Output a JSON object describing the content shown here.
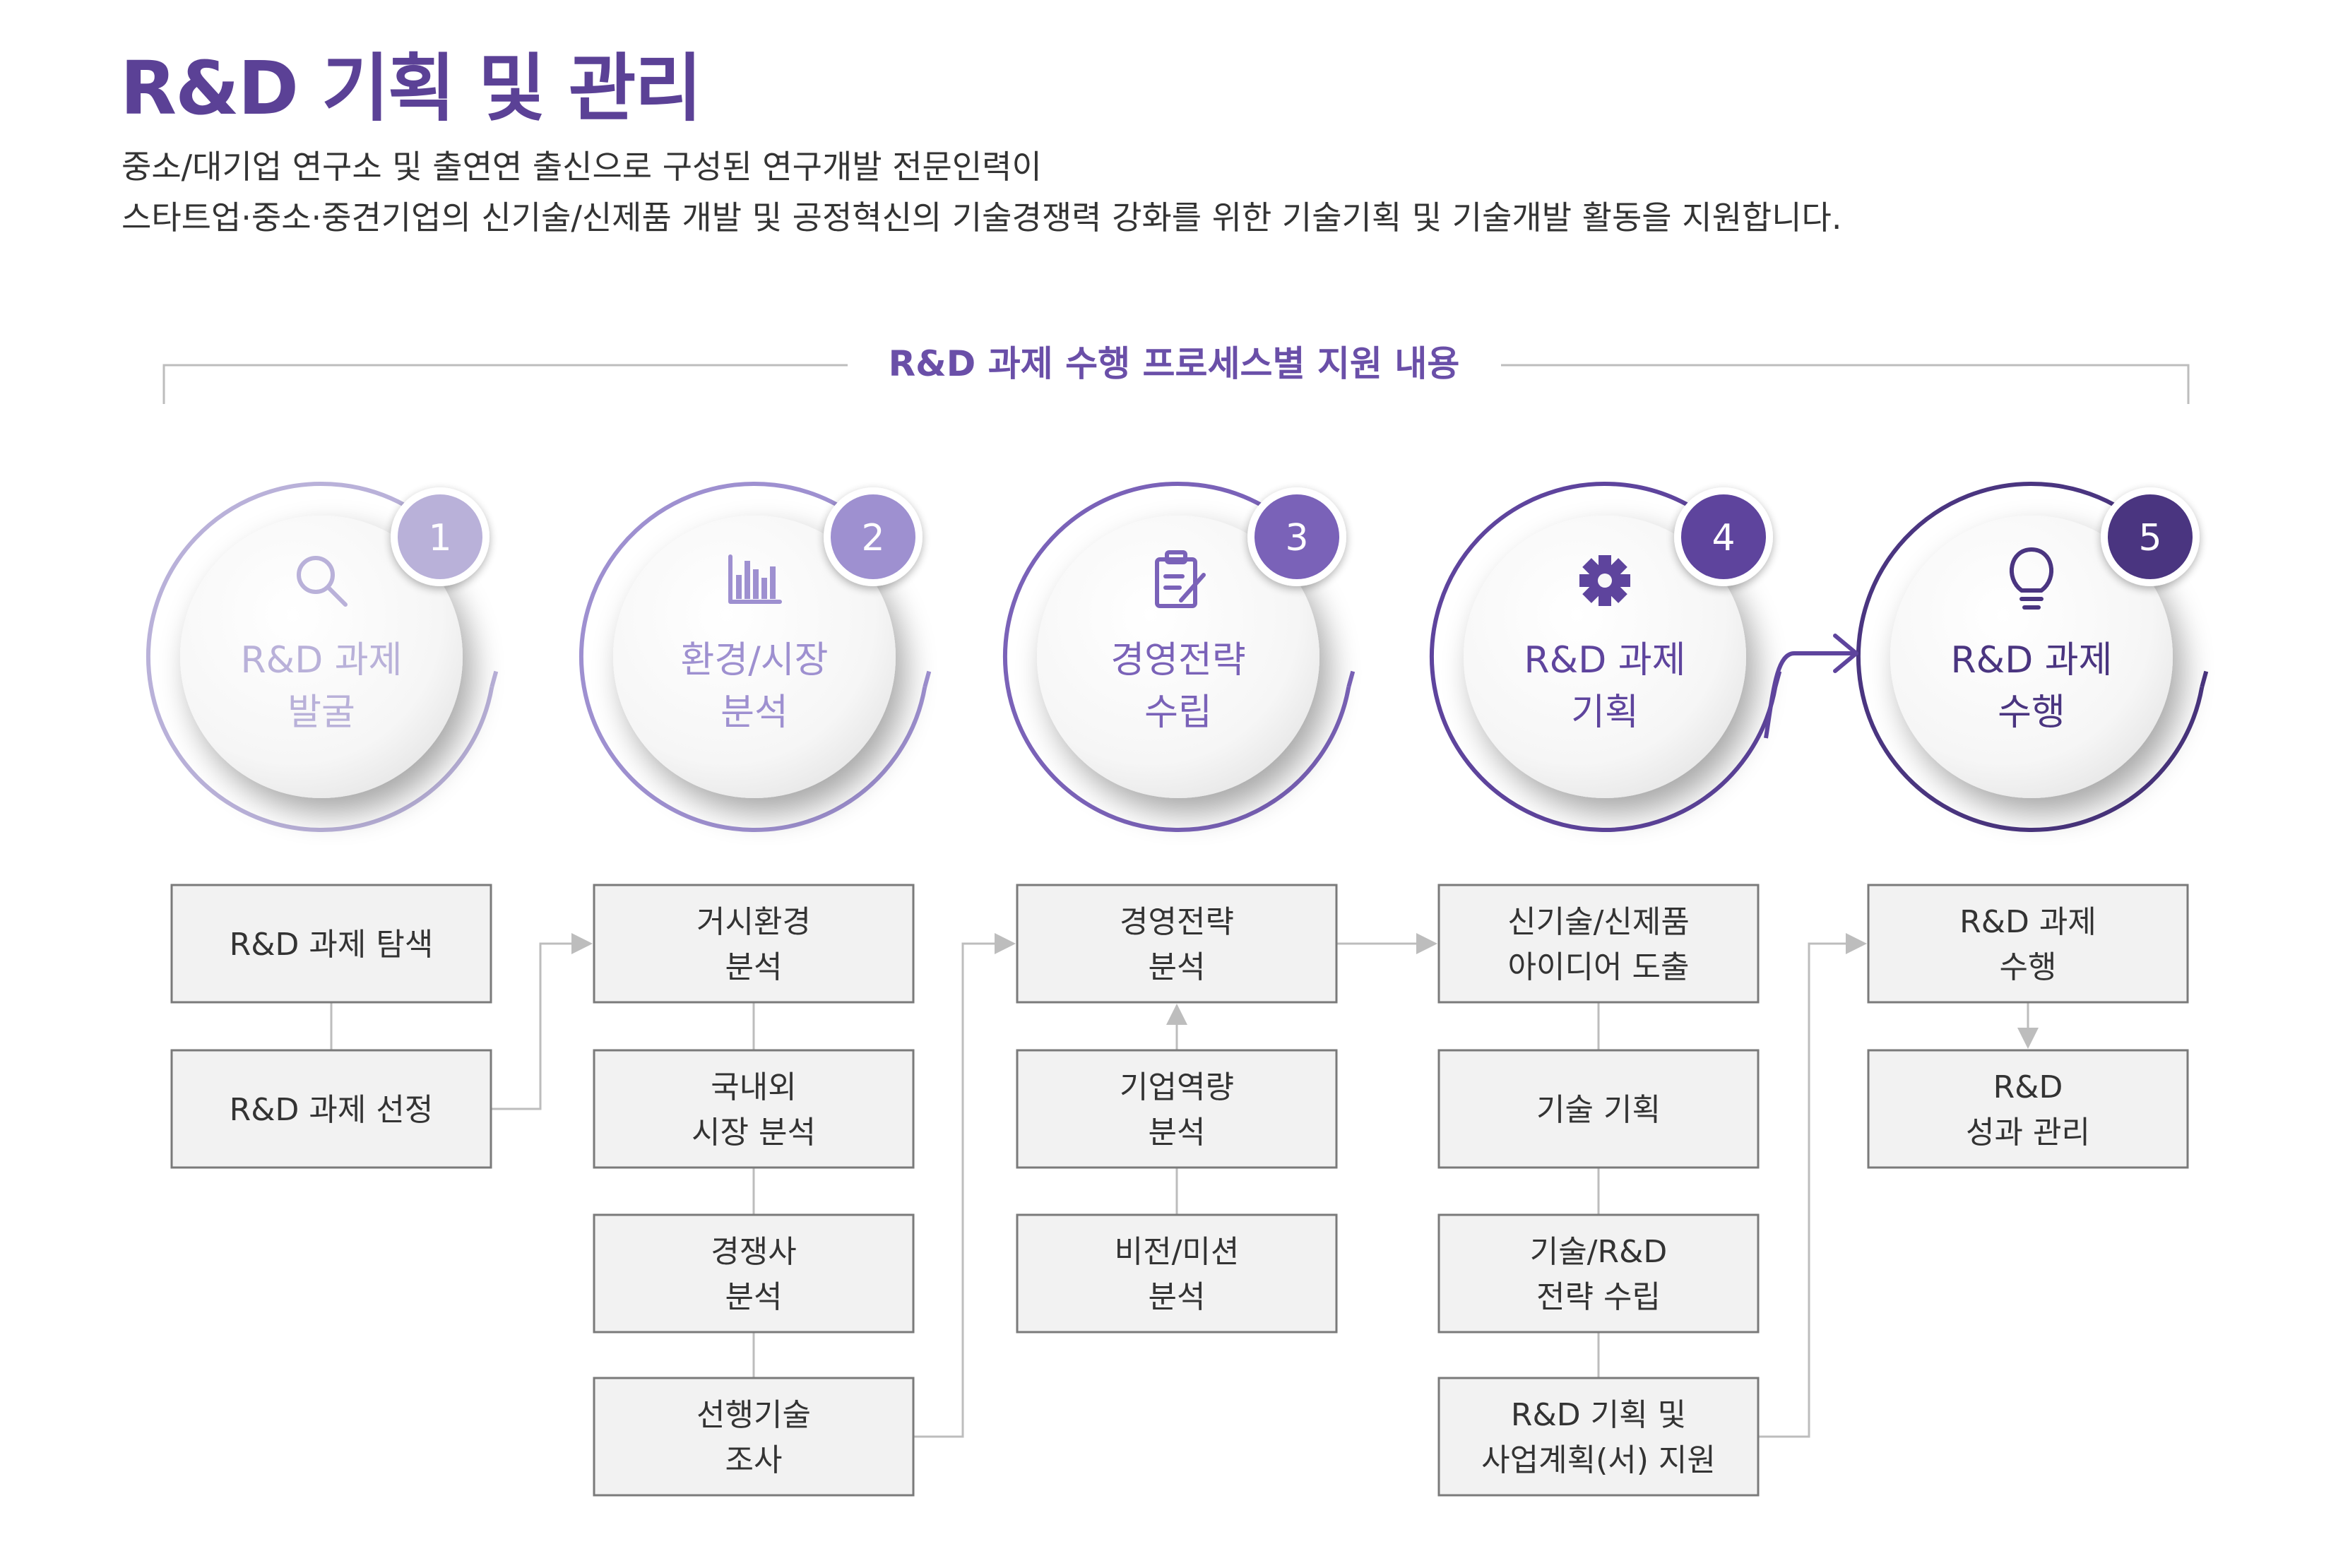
{
  "header": {
    "title": "R&D 기획 및 관리",
    "desc_line1": "중소/대기업 연구소 및 출연연 출신으로 구성된 연구개발 전문인력이",
    "desc_line2": "스타트업·중소·중견기업의 신기술/신제품 개발 및 공정혁신의 기술경쟁력 강화를 위한 기술기획 및 기술개발 활동을 지원합니다."
  },
  "section_title": "R&D 과제 수행 프로세스별 지원 내용",
  "colors": {
    "accent": "#5b4196",
    "step_colors": [
      "#b9b1d9",
      "#9e90d0",
      "#7a62b8",
      "#5e449d",
      "#4a3580"
    ],
    "box_fill": "#f2f2f2",
    "box_stroke": "#7a7a7a",
    "connector": "#bdbdbd"
  },
  "steps": [
    {
      "number": "1",
      "line1": "R&D 과제",
      "line2": "발굴",
      "icon": "search-icon"
    },
    {
      "number": "2",
      "line1": "환경/시장",
      "line2": "분석",
      "icon": "bar-chart-icon"
    },
    {
      "number": "3",
      "line1": "경영전략",
      "line2": "수립",
      "icon": "clipboard-icon"
    },
    {
      "number": "4",
      "line1": "R&D 과제",
      "line2": "기획",
      "icon": "gear-icon"
    },
    {
      "number": "5",
      "line1": "R&D 과제",
      "line2": "수행",
      "icon": "lightbulb-icon"
    }
  ],
  "columns": [
    {
      "boxes": [
        [
          "R&D 과제 탐색"
        ],
        [
          "R&D 과제 선정"
        ]
      ]
    },
    {
      "boxes": [
        [
          "거시환경",
          "분석"
        ],
        [
          "국내외",
          "시장 분석"
        ],
        [
          "경쟁사",
          "분석"
        ],
        [
          "선행기술",
          "조사"
        ]
      ]
    },
    {
      "boxes": [
        [
          "경영전략",
          "분석"
        ],
        [
          "기업역량",
          "분석"
        ],
        [
          "비전/미션",
          "분석"
        ]
      ]
    },
    {
      "boxes": [
        [
          "신기술/신제품",
          "아이디어 도출"
        ],
        [
          "기술 기획"
        ],
        [
          "기술/R&D",
          "전략 수립"
        ],
        [
          "R&D 기획 및",
          "사업계획(서) 지원"
        ]
      ]
    },
    {
      "boxes": [
        [
          "R&D 과제",
          "수행"
        ],
        [
          "R&D",
          "성과 관리"
        ]
      ]
    }
  ]
}
